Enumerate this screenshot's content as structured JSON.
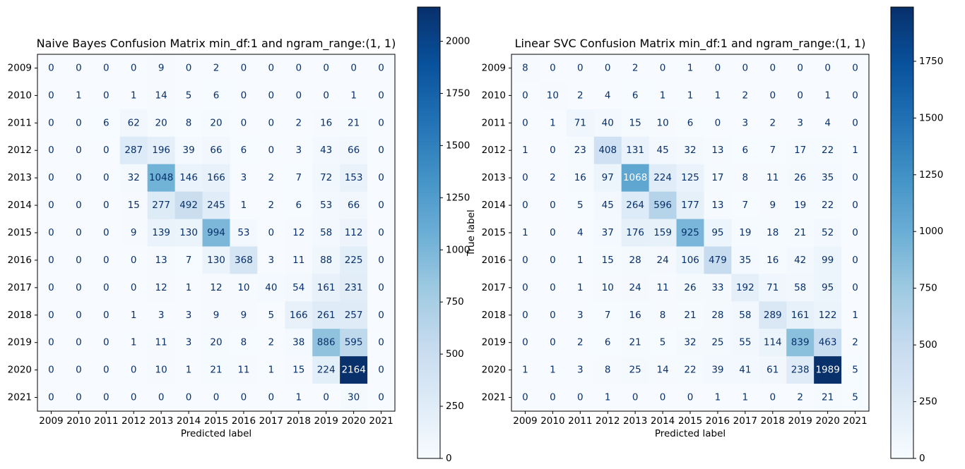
{
  "chart_data": [
    {
      "type": "heatmap",
      "title": "Naive Bayes Confusion Matrix min_df:1 and ngram_range:(1, 1)",
      "xlabel": "Predicted label",
      "ylabel": "True label",
      "labels": [
        "2009",
        "2010",
        "2011",
        "2012",
        "2013",
        "2014",
        "2015",
        "2016",
        "2017",
        "2018",
        "2019",
        "2020",
        "2021"
      ],
      "colormap": "Blues",
      "vmin": 0,
      "vmax": 2164,
      "colorbar_ticks": [
        0,
        250,
        500,
        750,
        1000,
        1250,
        1500,
        1750,
        2000
      ],
      "colorbar_tick_labels": [
        "0",
        "250",
        "500",
        "750",
        "1000",
        "1250",
        "1500",
        "1750",
        "2000"
      ],
      "matrix": [
        [
          0,
          0,
          0,
          0,
          9,
          0,
          2,
          0,
          0,
          0,
          0,
          0,
          0
        ],
        [
          0,
          1,
          0,
          1,
          14,
          5,
          6,
          0,
          0,
          0,
          0,
          1,
          0
        ],
        [
          0,
          0,
          6,
          62,
          20,
          8,
          20,
          0,
          0,
          2,
          16,
          21,
          0
        ],
        [
          0,
          0,
          0,
          287,
          196,
          39,
          66,
          6,
          0,
          3,
          43,
          66,
          0
        ],
        [
          0,
          0,
          0,
          32,
          1048,
          146,
          166,
          3,
          2,
          7,
          72,
          153,
          0
        ],
        [
          0,
          0,
          0,
          15,
          277,
          492,
          245,
          1,
          2,
          6,
          53,
          66,
          0
        ],
        [
          0,
          0,
          0,
          9,
          139,
          130,
          994,
          53,
          0,
          12,
          58,
          112,
          0
        ],
        [
          0,
          0,
          0,
          0,
          13,
          7,
          130,
          368,
          3,
          11,
          88,
          225,
          0
        ],
        [
          0,
          0,
          0,
          0,
          12,
          1,
          12,
          10,
          40,
          54,
          161,
          231,
          0
        ],
        [
          0,
          0,
          0,
          1,
          3,
          3,
          9,
          9,
          5,
          166,
          261,
          257,
          0
        ],
        [
          0,
          0,
          0,
          1,
          11,
          3,
          20,
          8,
          2,
          38,
          886,
          595,
          0
        ],
        [
          0,
          0,
          0,
          0,
          10,
          1,
          21,
          11,
          1,
          15,
          224,
          2164,
          0
        ],
        [
          0,
          0,
          0,
          0,
          0,
          0,
          0,
          0,
          0,
          1,
          0,
          30,
          0
        ]
      ]
    },
    {
      "type": "heatmap",
      "title": "Linear SVC Confusion Matrix min_df:1 and ngram_range:(1, 1)",
      "xlabel": "Predicted label",
      "ylabel": "",
      "labels": [
        "2009",
        "2010",
        "2011",
        "2012",
        "2013",
        "2014",
        "2015",
        "2016",
        "2017",
        "2018",
        "2019",
        "2020",
        "2021"
      ],
      "colormap": "Blues",
      "vmin": 0,
      "vmax": 1989,
      "colorbar_ticks": [
        0,
        250,
        500,
        750,
        1000,
        1250,
        1500,
        1750
      ],
      "colorbar_tick_labels": [
        "0",
        "250",
        "500",
        "750",
        "1000",
        "1250",
        "1500",
        "1750"
      ],
      "matrix": [
        [
          8,
          0,
          0,
          0,
          2,
          0,
          1,
          0,
          0,
          0,
          0,
          0,
          0
        ],
        [
          0,
          10,
          2,
          4,
          6,
          1,
          1,
          1,
          2,
          0,
          0,
          1,
          0
        ],
        [
          0,
          1,
          71,
          40,
          15,
          10,
          6,
          0,
          3,
          2,
          3,
          4,
          0
        ],
        [
          1,
          0,
          23,
          408,
          131,
          45,
          32,
          13,
          6,
          7,
          17,
          22,
          1
        ],
        [
          0,
          2,
          16,
          97,
          1068,
          224,
          125,
          17,
          8,
          11,
          26,
          35,
          0
        ],
        [
          0,
          0,
          5,
          45,
          264,
          596,
          177,
          13,
          7,
          9,
          19,
          22,
          0
        ],
        [
          1,
          0,
          4,
          37,
          176,
          159,
          925,
          95,
          19,
          18,
          21,
          52,
          0
        ],
        [
          0,
          0,
          1,
          15,
          28,
          24,
          106,
          479,
          35,
          16,
          42,
          99,
          0
        ],
        [
          0,
          0,
          1,
          10,
          24,
          11,
          26,
          33,
          192,
          71,
          58,
          95,
          0
        ],
        [
          0,
          0,
          3,
          7,
          16,
          8,
          21,
          28,
          58,
          289,
          161,
          122,
          1
        ],
        [
          0,
          0,
          2,
          6,
          21,
          5,
          32,
          25,
          55,
          114,
          839,
          463,
          2
        ],
        [
          1,
          1,
          3,
          8,
          25,
          14,
          22,
          39,
          41,
          61,
          238,
          1989,
          5
        ],
        [
          0,
          0,
          0,
          1,
          0,
          0,
          0,
          1,
          1,
          0,
          2,
          21,
          5
        ]
      ]
    }
  ]
}
